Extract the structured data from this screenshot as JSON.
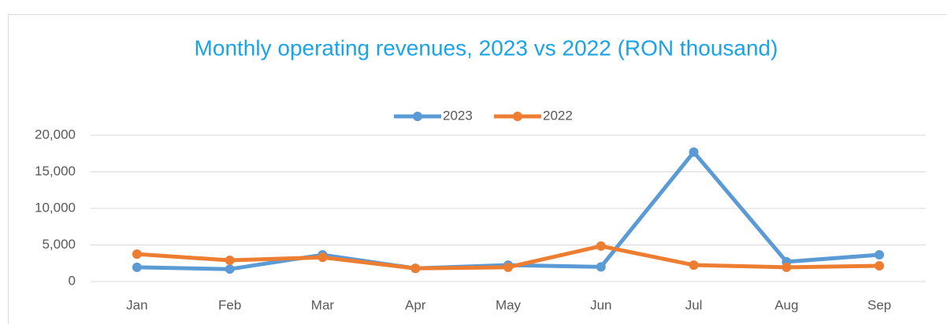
{
  "chart_data": {
    "type": "line",
    "title": "Monthly operating revenues, 2023 vs 2022 (RON thousand)",
    "categories": [
      "Jan",
      "Feb",
      "Mar",
      "Apr",
      "May",
      "Jun",
      "Jul",
      "Aug",
      "Sep"
    ],
    "series": [
      {
        "name": "2023",
        "color": "#5b9bd5",
        "values": [
          1950,
          1700,
          3650,
          1800,
          2250,
          2000,
          17700,
          2700,
          3650
        ]
      },
      {
        "name": "2022",
        "color": "#ed7d31",
        "values": [
          3750,
          2900,
          3300,
          1800,
          1950,
          4850,
          2250,
          1950,
          2150
        ]
      }
    ],
    "ylim": [
      0,
      20000
    ],
    "yticks": [
      0,
      {
        "value": 5000,
        "label": "5,000"
      },
      {
        "value": 10000,
        "label": "10,000"
      },
      {
        "value": 15000,
        "label": "15,000"
      },
      {
        "value": 20000,
        "label": "20,000"
      }
    ],
    "grid": true,
    "legend": "top"
  }
}
